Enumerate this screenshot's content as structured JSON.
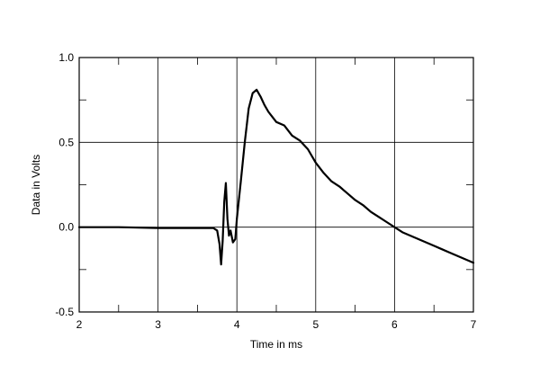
{
  "chart_data": {
    "type": "line",
    "title": "",
    "xlabel": "Time in ms",
    "ylabel": "Data in Volts",
    "xlim": [
      2,
      7
    ],
    "ylim": [
      -0.5,
      1.0
    ],
    "x_ticks": [
      2,
      3,
      4,
      5,
      6,
      7
    ],
    "x_tick_labels": [
      "2",
      "3",
      "4",
      "5",
      "6",
      "7"
    ],
    "y_ticks": [
      -0.5,
      0.0,
      0.5,
      1.0
    ],
    "y_tick_labels": [
      "-0.5",
      "0.0",
      "0.5",
      "1.0"
    ],
    "grid": true,
    "legend": "none",
    "series": [
      {
        "color": "#000000",
        "x": [
          2.0,
          2.5,
          3.0,
          3.5,
          3.7,
          3.75,
          3.78,
          3.8,
          3.82,
          3.84,
          3.86,
          3.88,
          3.9,
          3.92,
          3.95,
          3.98,
          4.0,
          4.05,
          4.1,
          4.15,
          4.2,
          4.25,
          4.3,
          4.35,
          4.4,
          4.5,
          4.6,
          4.7,
          4.8,
          4.9,
          5.0,
          5.1,
          5.2,
          5.3,
          5.4,
          5.5,
          5.6,
          5.7,
          5.8,
          5.9,
          6.0,
          6.1,
          6.2,
          6.3,
          6.4,
          6.5,
          6.6,
          6.7,
          6.8,
          6.9,
          7.0
        ],
        "y": [
          0.0,
          0.0,
          -0.005,
          -0.005,
          -0.005,
          -0.02,
          -0.1,
          -0.22,
          -0.08,
          0.15,
          0.26,
          0.05,
          -0.05,
          -0.02,
          -0.09,
          -0.07,
          0.05,
          0.27,
          0.5,
          0.7,
          0.79,
          0.81,
          0.77,
          0.72,
          0.68,
          0.62,
          0.6,
          0.54,
          0.51,
          0.46,
          0.38,
          0.32,
          0.27,
          0.24,
          0.2,
          0.16,
          0.13,
          0.09,
          0.06,
          0.03,
          0.0,
          -0.03,
          -0.05,
          -0.07,
          -0.09,
          -0.11,
          -0.13,
          -0.15,
          -0.17,
          -0.19,
          -0.21
        ]
      }
    ]
  }
}
